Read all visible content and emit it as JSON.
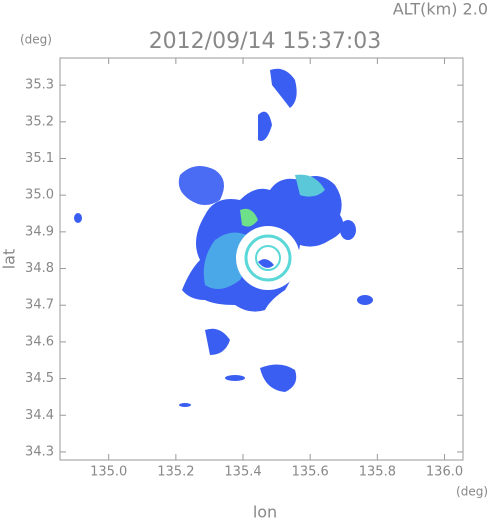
{
  "header": {
    "altitude": "ALT(km)  2.0",
    "timestamp": "2012/09/14 15:37:03",
    "y_unit": "(deg)",
    "x_unit": "(deg)"
  },
  "chart_data": {
    "type": "radar-map",
    "xlabel": "lon",
    "ylabel": "lat",
    "xlim": [
      134.855,
      136.055
    ],
    "ylim": [
      34.278,
      35.374
    ],
    "xticks": [
      {
        "value": 135.0,
        "label": "135.0"
      },
      {
        "value": 135.2,
        "label": "135.2"
      },
      {
        "value": 135.4,
        "label": "135.4"
      },
      {
        "value": 135.6,
        "label": "135.6"
      },
      {
        "value": 135.8,
        "label": "135.8"
      },
      {
        "value": 136.0,
        "label": "136.0"
      }
    ],
    "yticks": [
      {
        "value": 34.3,
        "label": "34.3"
      },
      {
        "value": 34.4,
        "label": "34.4"
      },
      {
        "value": 34.5,
        "label": "34.5"
      },
      {
        "value": 34.6,
        "label": "34.6"
      },
      {
        "value": 34.7,
        "label": "34.7"
      },
      {
        "value": 34.8,
        "label": "34.8"
      },
      {
        "value": 34.9,
        "label": "34.9"
      },
      {
        "value": 35.0,
        "label": "35.0"
      },
      {
        "value": 35.1,
        "label": "35.1"
      },
      {
        "value": 35.2,
        "label": "35.2"
      },
      {
        "value": 35.3,
        "label": "35.3"
      }
    ]
  }
}
